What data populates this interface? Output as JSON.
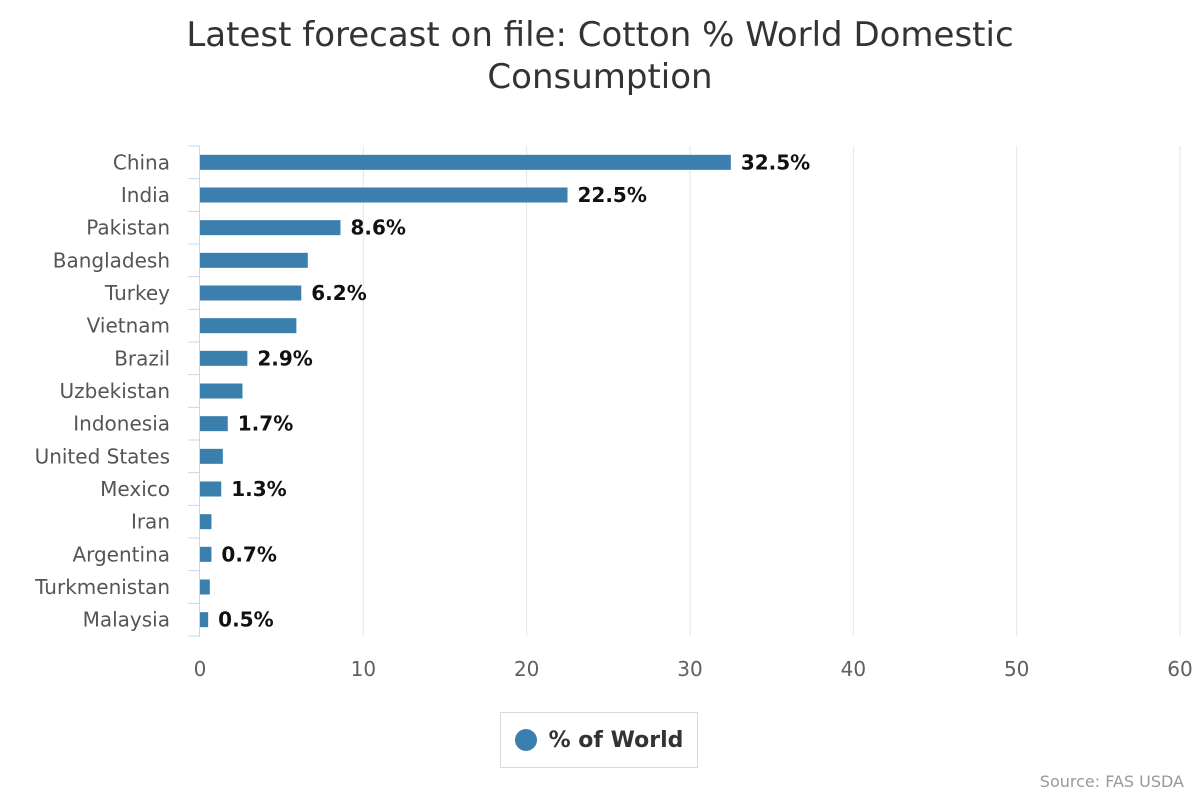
{
  "chart_data": {
    "type": "bar",
    "orientation": "horizontal",
    "title_lines": [
      "Latest forecast on file: Cotton % World Domestic",
      "Consumption"
    ],
    "categories": [
      "China",
      "India",
      "Pakistan",
      "Bangladesh",
      "Turkey",
      "Vietnam",
      "Brazil",
      "Uzbekistan",
      "Indonesia",
      "United States",
      "Mexico",
      "Iran",
      "Argentina",
      "Turkmenistan",
      "Malaysia"
    ],
    "series": [
      {
        "name": "% of World",
        "color": "#3a7fad",
        "values": [
          32.5,
          22.5,
          8.6,
          6.6,
          6.2,
          5.9,
          2.9,
          2.6,
          1.7,
          1.4,
          1.3,
          0.7,
          0.7,
          0.6,
          0.5
        ]
      }
    ],
    "data_labels": [
      "32.5%",
      "22.5%",
      "8.6%",
      "",
      "6.2%",
      "",
      "2.9%",
      "",
      "1.7%",
      "",
      "1.3%",
      "",
      "0.7%",
      "",
      "0.5%"
    ],
    "xlim": [
      0,
      60
    ],
    "xticks": [
      0,
      10,
      20,
      30,
      40,
      50,
      60
    ],
    "grid": true,
    "legend_position": "bottom-center",
    "source": "Source: FAS USDA"
  }
}
